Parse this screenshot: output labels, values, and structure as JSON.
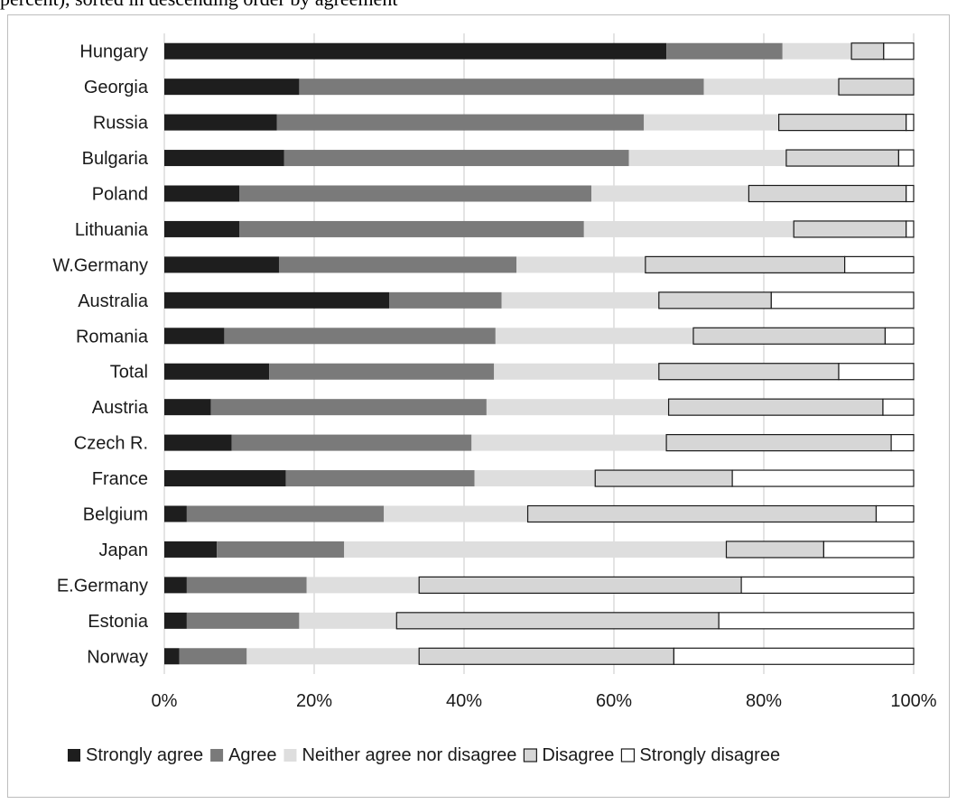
{
  "page": {
    "top_text": "percent), sorted in descending order by agreement"
  },
  "colors": {
    "Strongly agree": "#1e1e1e",
    "Agree": "#7a7a7a",
    "Neither agree nor disagree": "#dedede",
    "Disagree": "#d6d6d6",
    "Strongly disagree": "#ffffff",
    "grid": "#c8c8c8",
    "outline": "#1a1a1a"
  },
  "chart_data": {
    "type": "bar",
    "orientation": "horizontal",
    "stacked": "percent",
    "categories": [
      "Hungary",
      "Georgia",
      "Russia",
      "Bulgaria",
      "Poland",
      "Lithuania",
      "W.Germany",
      "Australia",
      "Romania",
      "Total",
      "Austria",
      "Czech R.",
      "France",
      "Belgium",
      "Japan",
      "E.Germany",
      "Estonia",
      "Norway"
    ],
    "series": [
      {
        "name": "Strongly agree",
        "values": [
          67,
          18,
          15,
          16,
          10,
          10,
          15.3,
          30,
          8,
          14,
          6.2,
          9,
          16.2,
          3,
          7,
          3,
          3,
          2
        ]
      },
      {
        "name": "Agree",
        "values": [
          15.5,
          54,
          49,
          46,
          47,
          46,
          31.7,
          15,
          36.2,
          30,
          36.8,
          32,
          25.2,
          26.3,
          17,
          16,
          15,
          9
        ]
      },
      {
        "name": "Neither agree nor disagree",
        "values": [
          9.2,
          18,
          18,
          21,
          21,
          28,
          17.2,
          21,
          26.4,
          22,
          24.3,
          26,
          16.1,
          19.2,
          51,
          15,
          13,
          23
        ]
      },
      {
        "name": "Disagree",
        "values": [
          4.3,
          10,
          17,
          15,
          21,
          15,
          26.6,
          15,
          25.6,
          24,
          28.6,
          30,
          18.3,
          46.5,
          13,
          43,
          43,
          34
        ]
      },
      {
        "name": "Strongly disagree",
        "values": [
          4,
          0,
          1,
          2,
          1,
          1,
          9.2,
          19,
          3.8,
          10,
          4.1,
          3,
          24.2,
          5,
          12,
          23,
          26,
          32
        ]
      }
    ],
    "x_ticks": [
      "0%",
      "20%",
      "40%",
      "60%",
      "80%",
      "100%"
    ],
    "xlim": [
      0,
      100
    ],
    "grid": "vertical",
    "legend": "bottom",
    "title": "",
    "xlabel": "",
    "ylabel": ""
  }
}
